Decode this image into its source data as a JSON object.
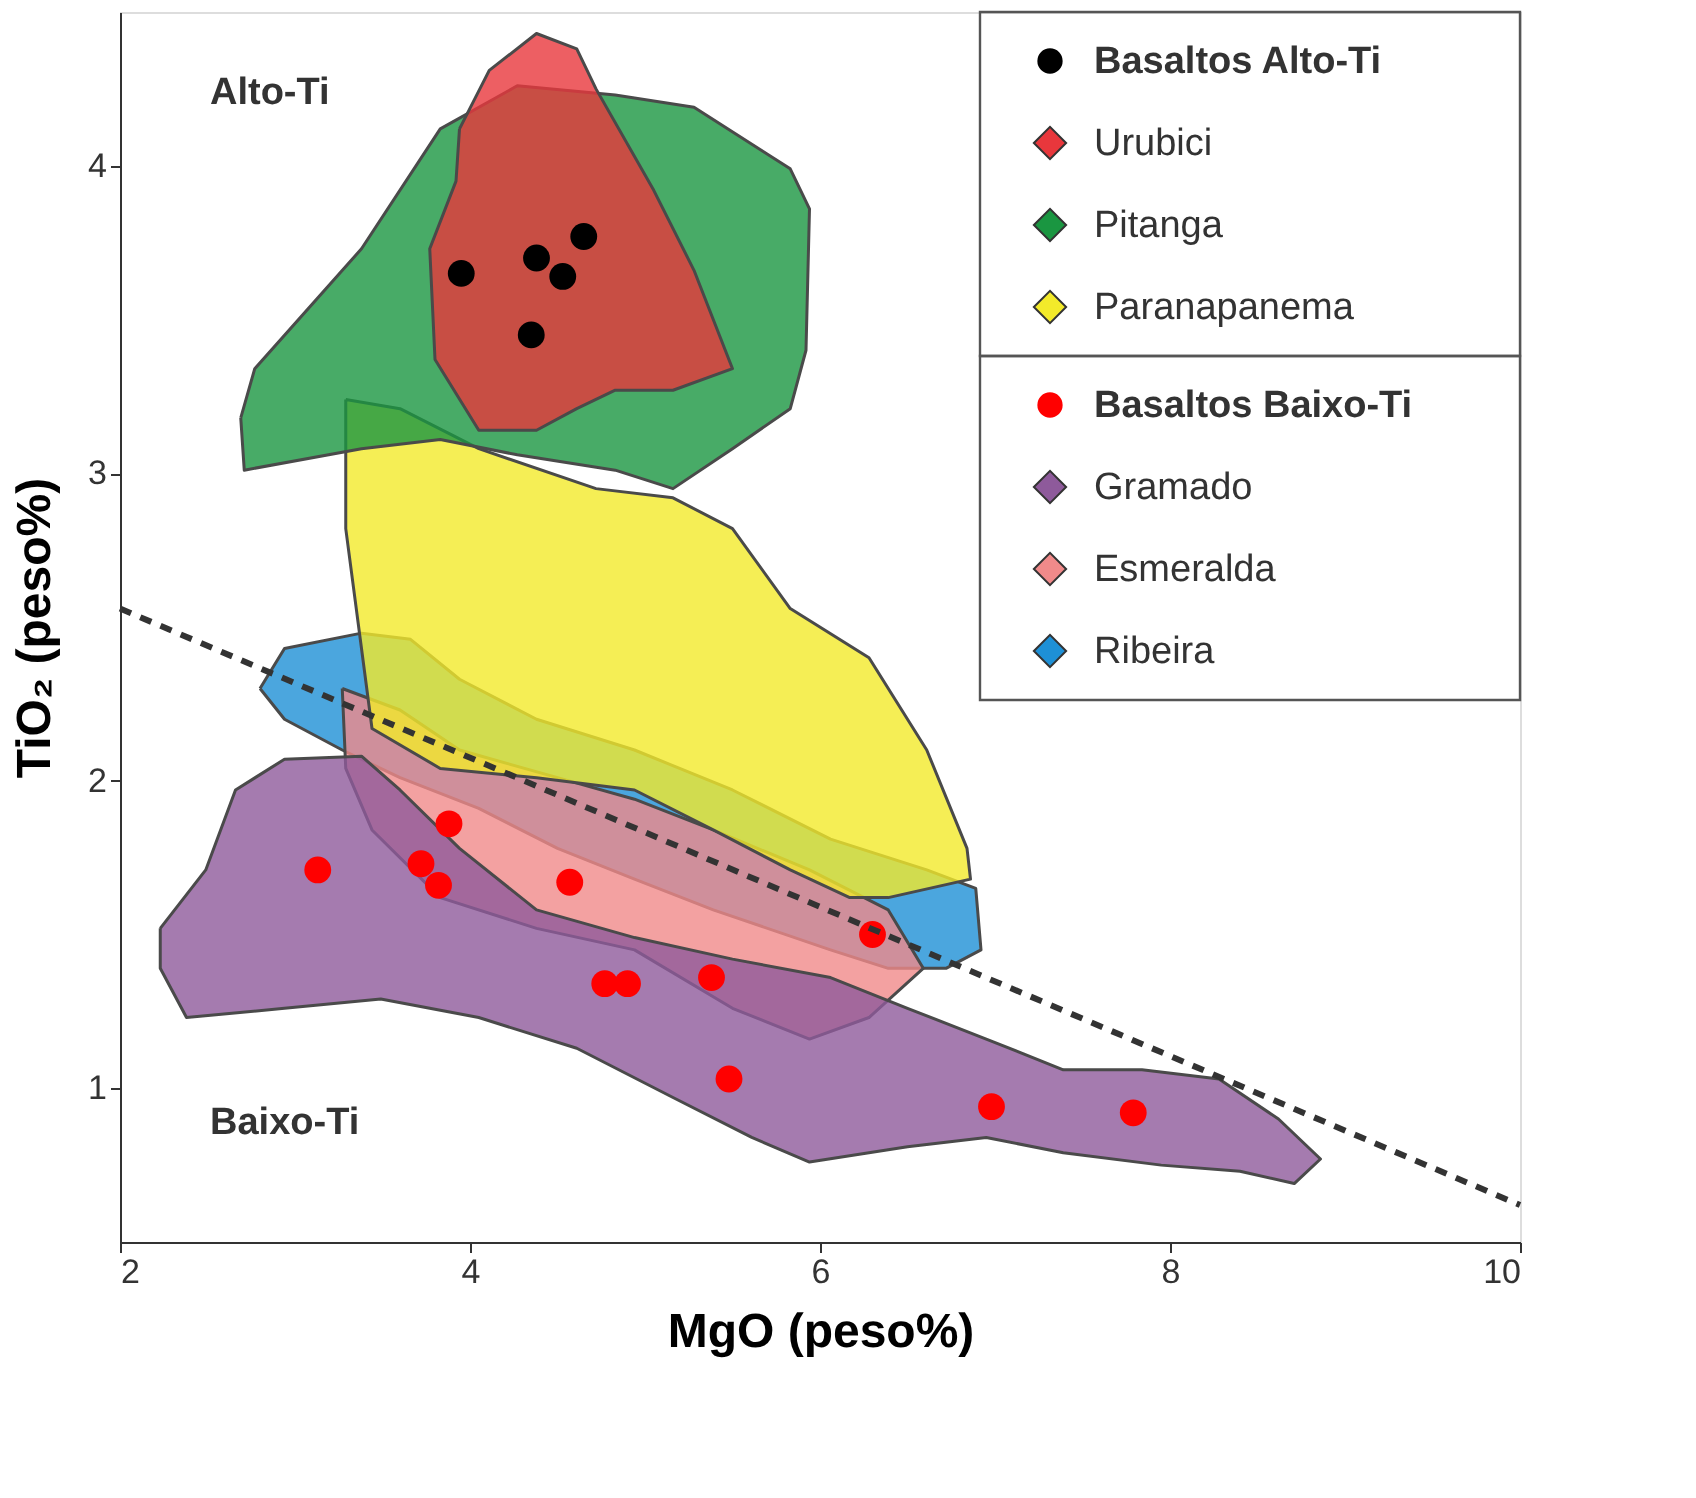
{
  "chart_data": {
    "type": "scatter",
    "xlabel": "MgO (peso%)",
    "ylabel": "TiO₂ (peso%)",
    "xlim": [
      2,
      10
    ],
    "ylim": [
      0.5,
      4.5
    ],
    "xticks": [
      2,
      4,
      6,
      8,
      10
    ],
    "yticks": [
      1,
      2,
      3,
      4
    ],
    "grid": false,
    "legend": "top right",
    "marker": "circle",
    "annotations": [
      "Alto-Ti",
      "Baixo-Ti"
    ],
    "series": [
      {
        "name": "Basaltos Alto-Ti",
        "color": "#000000",
        "x": [
          3.95,
          4.38,
          4.53,
          4.65,
          4.35
        ],
        "values": [
          3.65,
          3.7,
          3.64,
          3.77,
          3.45
        ]
      },
      {
        "name": "Urubici",
        "type": "area",
        "marker": "none",
        "color": "#e8373c",
        "x": [
          3.94,
          4.11,
          4.38,
          4.61,
          4.72,
          5.05,
          5.28,
          5.5,
          5.16,
          4.83,
          4.61,
          4.38,
          4.05,
          3.8,
          3.77,
          3.92
        ],
        "values": [
          4.12,
          4.31,
          4.43,
          4.38,
          4.25,
          3.92,
          3.66,
          3.34,
          3.27,
          3.27,
          3.21,
          3.14,
          3.14,
          3.37,
          3.73,
          3.95
        ]
      },
      {
        "name": "Pitanga",
        "type": "area",
        "marker": "none",
        "color": "#1a9641",
        "x": [
          2.69,
          2.77,
          3.38,
          3.83,
          4.27,
          4.83,
          5.28,
          5.83,
          5.94,
          5.92,
          5.83,
          5.5,
          5.16,
          4.83,
          4.27,
          3.83,
          3.38,
          2.71
        ],
        "values": [
          3.18,
          3.34,
          3.73,
          4.12,
          4.26,
          4.23,
          4.19,
          3.99,
          3.86,
          3.4,
          3.21,
          3.08,
          2.95,
          3.01,
          3.06,
          3.11,
          3.08,
          3.01
        ]
      },
      {
        "name": "Paranapanema",
        "type": "area",
        "marker": "none",
        "color": "#f3ea2a",
        "x": [
          3.29,
          3.6,
          4.05,
          4.72,
          5.16,
          5.5,
          5.83,
          6.28,
          6.61,
          6.84,
          6.86,
          6.39,
          6.17,
          5.83,
          5.39,
          4.94,
          4.38,
          3.83,
          3.44,
          3.38,
          3.29
        ],
        "values": [
          3.24,
          3.21,
          3.08,
          2.95,
          2.92,
          2.82,
          2.56,
          2.4,
          2.1,
          1.78,
          1.68,
          1.62,
          1.62,
          1.71,
          1.84,
          1.97,
          2.01,
          2.04,
          2.17,
          2.43,
          2.82
        ]
      },
      {
        "name": "Basaltos Baixo-Ti",
        "color": "#ff0000",
        "x": [
          3.13,
          3.72,
          3.82,
          3.88,
          4.57,
          4.77,
          4.9,
          5.38,
          5.48,
          6.3,
          6.98,
          7.79
        ],
        "values": [
          1.71,
          1.73,
          1.66,
          1.86,
          1.67,
          1.34,
          1.34,
          1.36,
          1.03,
          1.5,
          0.94,
          0.92
        ]
      },
      {
        "name": "Gramado",
        "type": "area",
        "marker": "none",
        "color": "#8e5a9b",
        "x": [
          2.23,
          2.49,
          2.66,
          2.94,
          3.38,
          3.6,
          3.94,
          4.38,
          4.94,
          5.5,
          6.06,
          6.5,
          6.95,
          7.39,
          7.84,
          8.28,
          8.62,
          8.86,
          8.71,
          8.4,
          7.95,
          7.39,
          6.95,
          6.5,
          5.94,
          5.61,
          5.16,
          4.61,
          4.05,
          3.49,
          2.94,
          2.38,
          2.23
        ],
        "values": [
          1.52,
          1.71,
          1.97,
          2.07,
          2.08,
          1.97,
          1.78,
          1.58,
          1.49,
          1.42,
          1.36,
          1.26,
          1.16,
          1.06,
          1.06,
          1.03,
          0.9,
          0.77,
          0.69,
          0.73,
          0.75,
          0.79,
          0.84,
          0.81,
          0.76,
          0.84,
          0.97,
          1.13,
          1.23,
          1.29,
          1.26,
          1.23,
          1.39
        ]
      },
      {
        "name": "Esmeralda",
        "type": "area",
        "marker": "none",
        "color": "#f08a8a",
        "x": [
          3.27,
          3.6,
          3.94,
          4.5,
          4.94,
          5.39,
          5.94,
          6.39,
          6.59,
          6.28,
          5.94,
          5.5,
          4.94,
          4.38,
          3.83,
          3.44,
          3.29
        ],
        "values": [
          2.3,
          2.23,
          2.1,
          2.01,
          1.94,
          1.84,
          1.71,
          1.58,
          1.39,
          1.23,
          1.16,
          1.26,
          1.45,
          1.52,
          1.62,
          1.84,
          2.04
        ]
      },
      {
        "name": "Ribeira",
        "type": "area",
        "marker": "none",
        "color": "#1e90d6",
        "x": [
          2.8,
          2.94,
          3.38,
          3.66,
          3.94,
          4.38,
          4.94,
          5.5,
          6.06,
          6.61,
          6.89,
          6.92,
          6.72,
          6.39,
          6.06,
          5.39,
          4.94,
          4.5,
          4.05,
          3.6,
          3.27,
          2.94
        ],
        "values": [
          2.3,
          2.43,
          2.48,
          2.46,
          2.33,
          2.2,
          2.1,
          1.97,
          1.81,
          1.71,
          1.65,
          1.45,
          1.39,
          1.39,
          1.45,
          1.58,
          1.68,
          1.78,
          1.91,
          2.01,
          2.1,
          2.2
        ]
      },
      {
        "type": "line",
        "color": "#333333",
        "line_style": "dashed",
        "marker": "none",
        "x": [
          2,
          10
        ],
        "values": [
          2.56,
          0.62
        ]
      }
    ]
  }
}
